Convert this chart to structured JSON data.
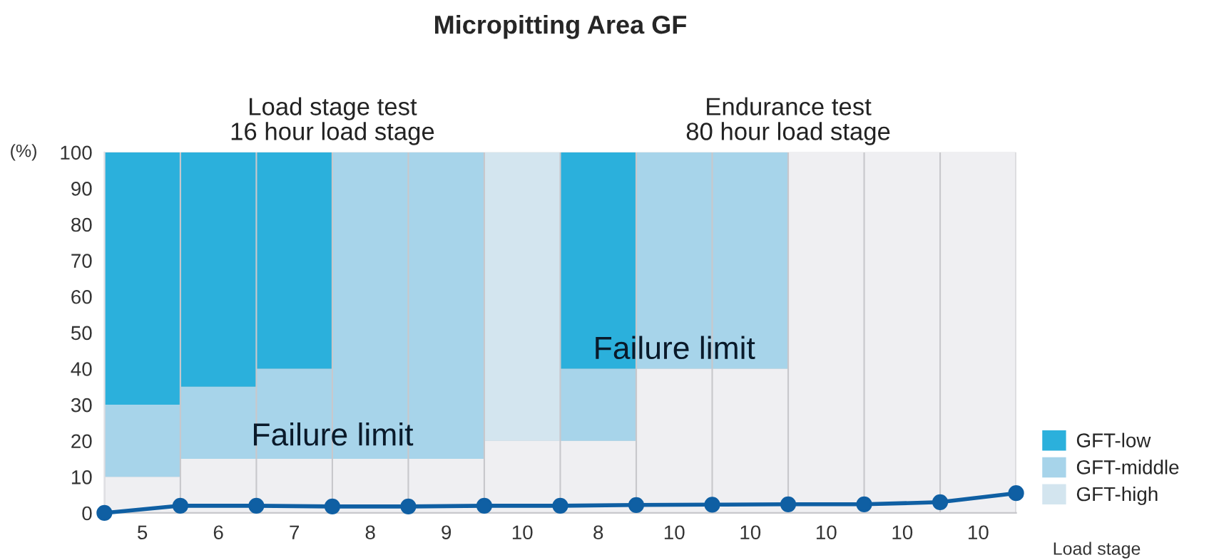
{
  "chart_data": {
    "type": "bar",
    "stacked": true,
    "title": "Micropitting Area GF",
    "ylabel": "(%)",
    "xlabel": "Load stage",
    "categories": [
      null,
      "5",
      null,
      "6",
      null,
      "7",
      null,
      "8",
      null,
      "9",
      null,
      "10",
      null,
      "8",
      null,
      "10",
      null,
      "10",
      null,
      "10",
      null,
      "10",
      null,
      "10",
      null
    ],
    "series": [
      {
        "color": "#efeff2",
        "values": [
          null,
          10,
          null,
          15,
          null,
          15,
          null,
          15,
          null,
          15,
          null,
          20,
          null,
          20,
          null,
          40,
          null,
          40,
          null,
          100,
          null,
          100,
          null,
          100,
          null
        ]
      },
      {
        "name": "GFT-high",
        "color": "#d3e5ef",
        "values": [
          null,
          0,
          null,
          0,
          null,
          0,
          null,
          0,
          null,
          0,
          null,
          80,
          null,
          0,
          null,
          0,
          null,
          0,
          null,
          0,
          null,
          0,
          null,
          0,
          null
        ]
      },
      {
        "name": "GFT-middle",
        "color": "#a7d4ea",
        "values": [
          null,
          20,
          null,
          20,
          null,
          25,
          null,
          85,
          null,
          85,
          null,
          0,
          null,
          20,
          null,
          60,
          null,
          60,
          null,
          0,
          null,
          0,
          null,
          0,
          null
        ]
      },
      {
        "name": "GFT-low",
        "color": "#2bb0dc",
        "values": [
          null,
          70,
          null,
          65,
          null,
          60,
          null,
          0,
          null,
          0,
          null,
          0,
          null,
          60,
          null,
          0,
          null,
          0,
          null,
          0,
          null,
          0,
          null,
          0,
          null
        ]
      },
      {
        "type": "line",
        "color": "#0f5fa3",
        "marker": "circle",
        "values": [
          0,
          null,
          2,
          null,
          2,
          null,
          1.8,
          null,
          1.8,
          null,
          2,
          null,
          2,
          null,
          2.2,
          null,
          2.3,
          null,
          2.4,
          null,
          2.4,
          null,
          3,
          null,
          5.5
        ]
      }
    ],
    "ylim": [
      0,
      100
    ],
    "yticks": [
      0,
      10,
      20,
      30,
      40,
      50,
      60,
      70,
      80,
      90,
      100
    ],
    "grid": false,
    "legend": "bottom right",
    "annotations": [
      "Load stage test\n16 hour load stage",
      "Endurance test\n80 hour load stage",
      "Failure limit",
      "Failure limit"
    ]
  }
}
